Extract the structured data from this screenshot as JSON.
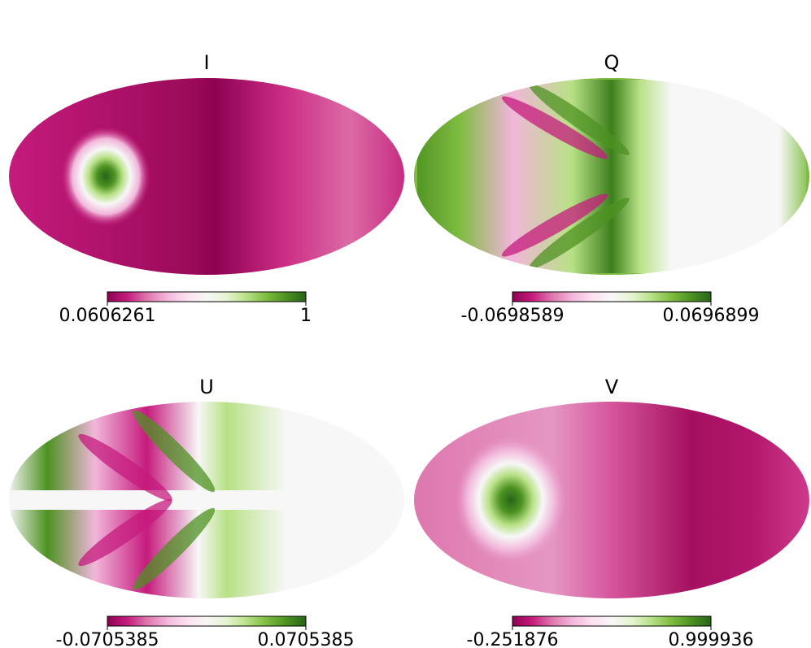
{
  "chart_data": [
    {
      "type": "mollweide",
      "title": "I",
      "clim": [
        0.0606261,
        1
      ],
      "colormap": "PiYG"
    },
    {
      "type": "mollweide",
      "title": "Q",
      "clim": [
        -0.0698589,
        0.0696899
      ],
      "colormap": "PiYG"
    },
    {
      "type": "mollweide",
      "title": "U",
      "clim": [
        -0.0705385,
        0.0705385
      ],
      "colormap": "PiYG"
    },
    {
      "type": "mollweide",
      "title": "V",
      "clim": [
        -0.251876,
        0.999936
      ],
      "colormap": "PiYG"
    }
  ]
}
